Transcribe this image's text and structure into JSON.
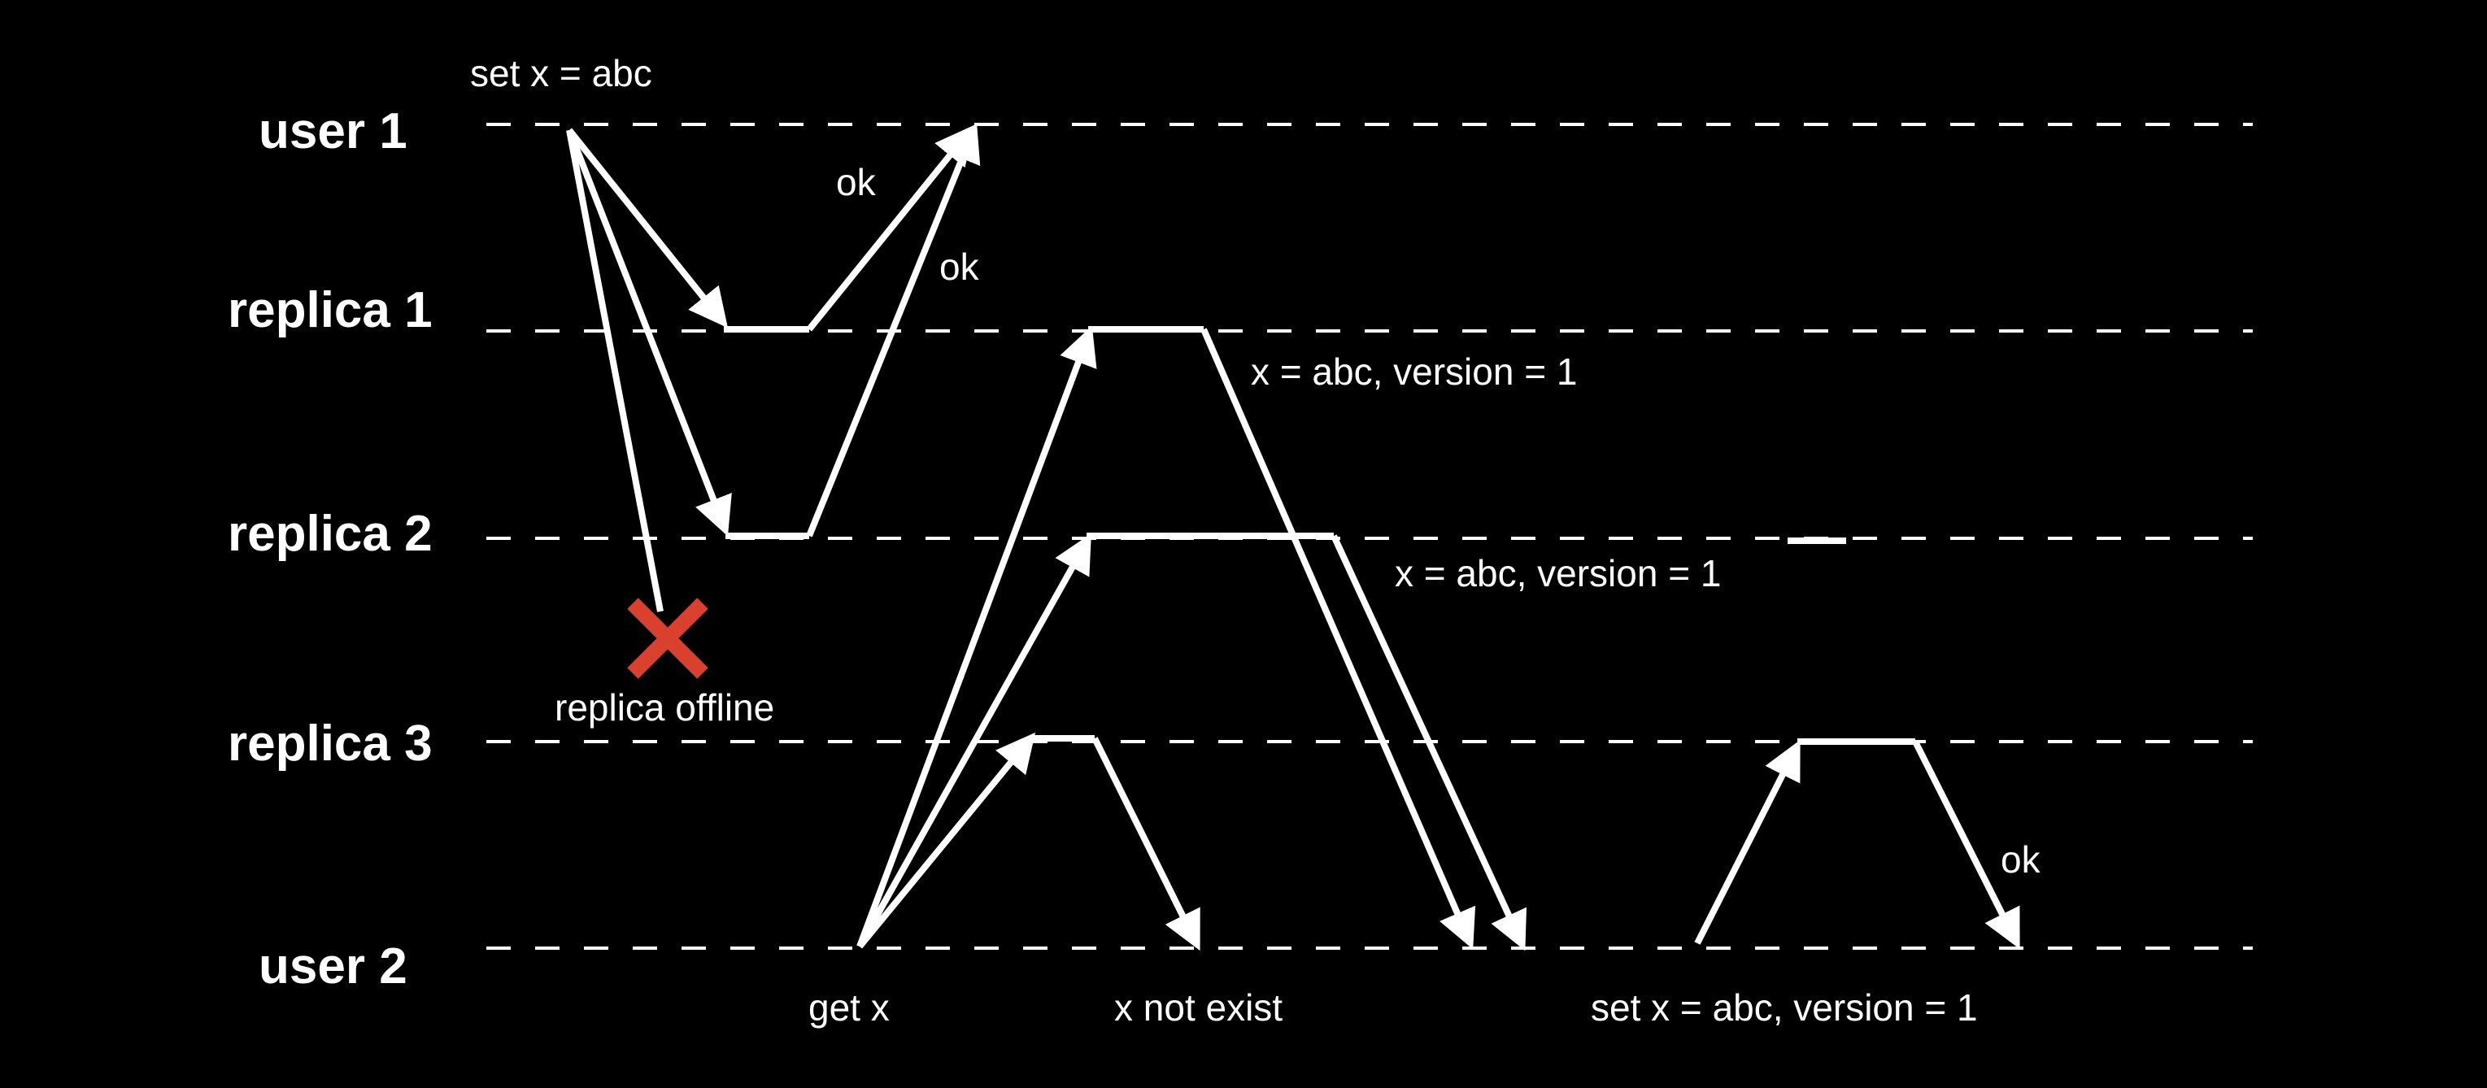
{
  "colors": {
    "background": "#000000",
    "foreground": "#ffffff",
    "offline_marker": "#d9412e"
  },
  "lanes": {
    "user1": "user 1",
    "replica1": "replica 1",
    "replica2": "replica 2",
    "replica3": "replica 3",
    "user2": "user 2"
  },
  "annotations": {
    "set_request": "set x = abc",
    "ok_replica1": "ok",
    "ok_replica2": "ok",
    "replica1_state": "x = abc, version = 1",
    "replica2_state": "x = abc, version = 1",
    "replica_offline": "replica offline",
    "get_request": "get x",
    "not_exist": "x not exist",
    "set_versioned": "set x = abc, version = 1",
    "ok_replica3": "ok"
  },
  "icons": {
    "offline": "cross-icon"
  }
}
